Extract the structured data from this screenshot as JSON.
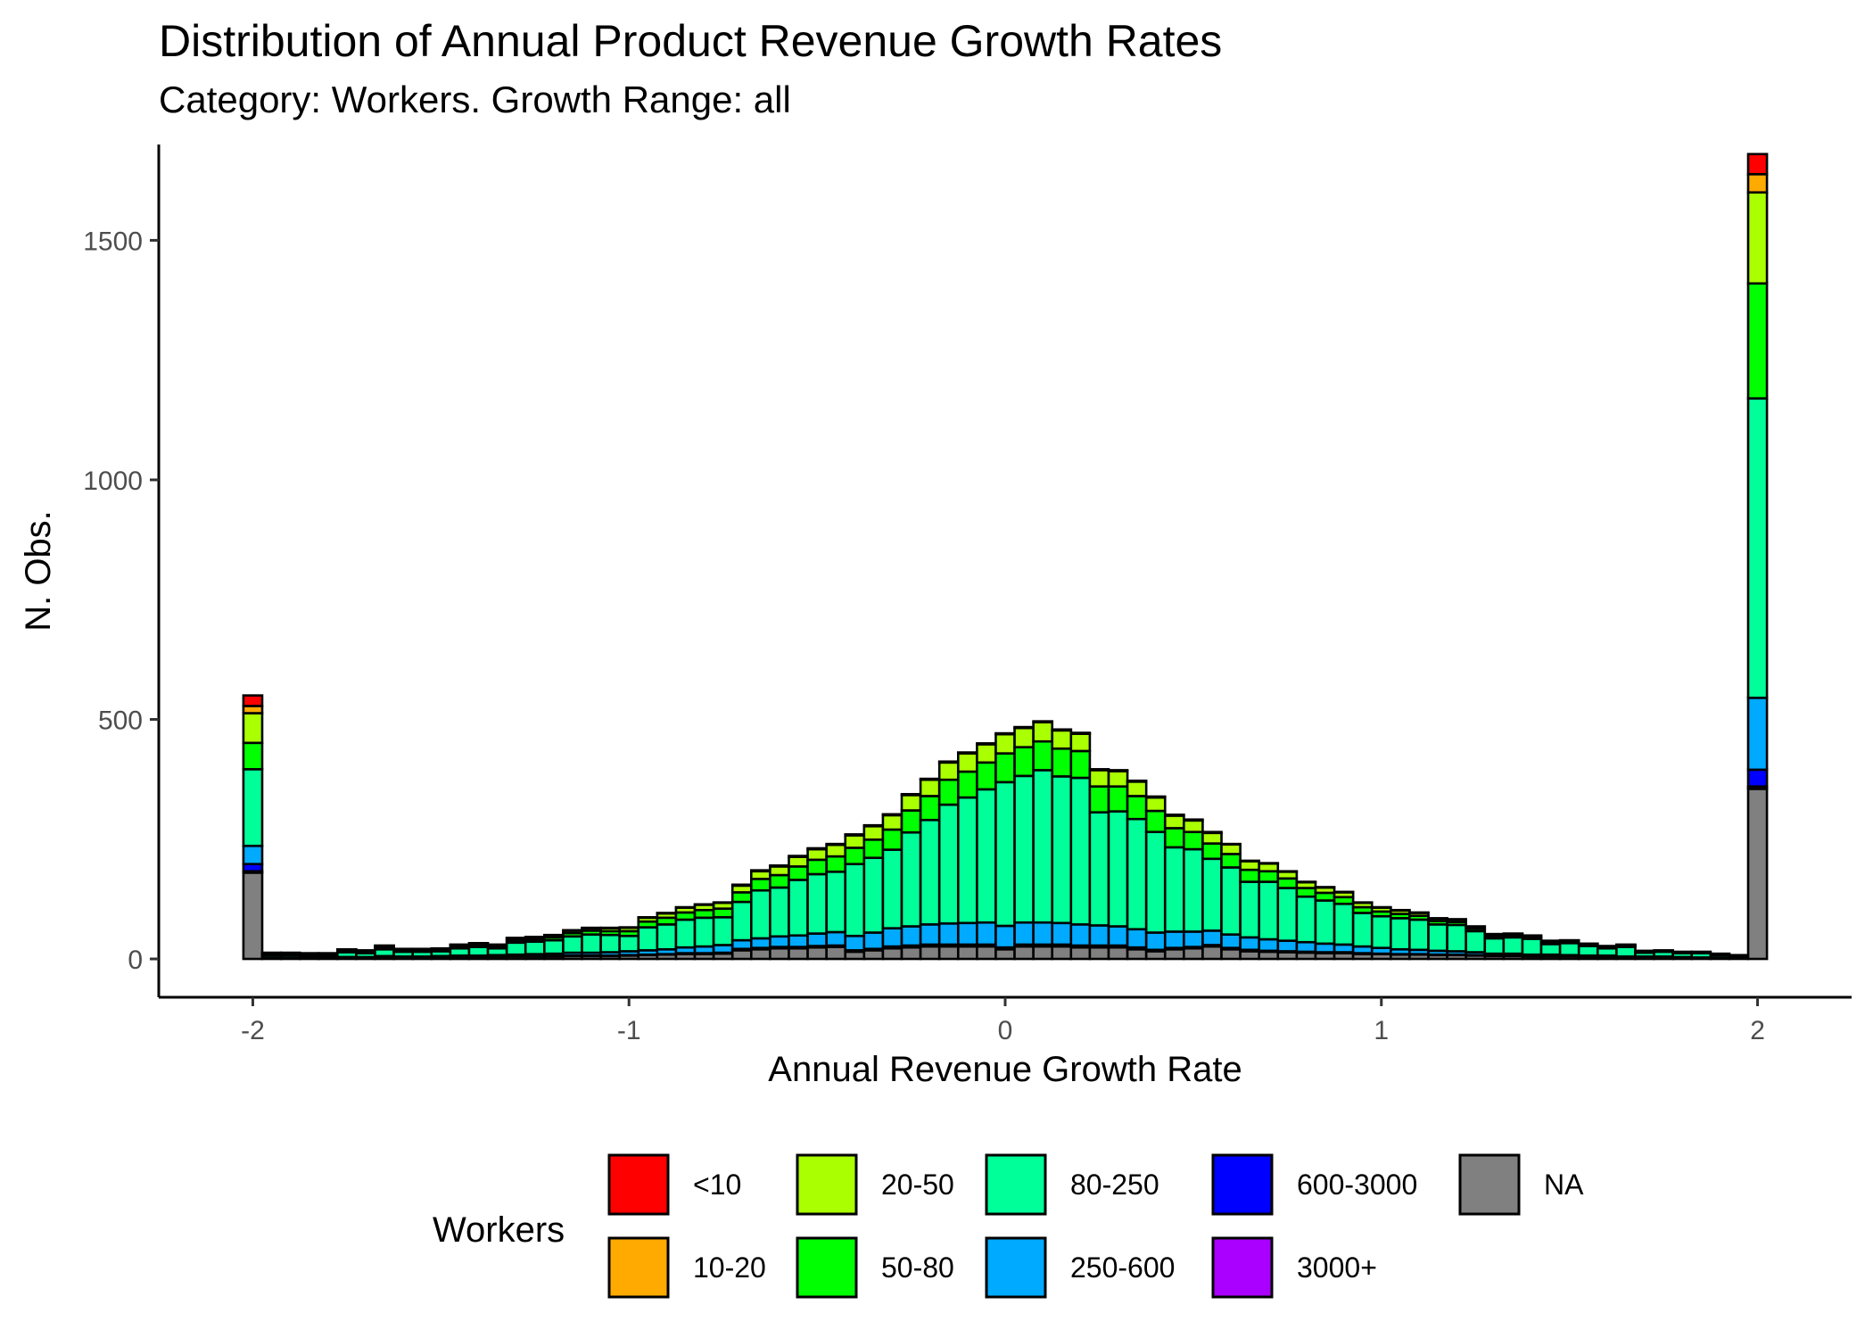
{
  "chart_data": {
    "type": "bar",
    "stacked": true,
    "title": "Distribution of Annual Product Revenue Growth Rates",
    "subtitle": "Category: Workers. Growth Range: all",
    "xlabel": "Annual Revenue Growth Rate",
    "ylabel": "N. Obs.",
    "xlim": [
      -2.25,
      2.25
    ],
    "ylim": [
      -80,
      1700
    ],
    "x_ticks": [
      -2,
      -1,
      0,
      1,
      2
    ],
    "x_tick_labels": [
      "-2",
      "-1",
      "0",
      "1",
      "2"
    ],
    "y_ticks": [
      0,
      500,
      1000,
      1500
    ],
    "y_tick_labels": [
      "0",
      "500",
      "1000",
      "1500"
    ],
    "bin_width": 0.05,
    "grid": false,
    "legend_position": "bottom",
    "legend_title": "Workers",
    "x": [
      -2.0,
      -1.95,
      -1.9,
      -1.85,
      -1.8,
      -1.75,
      -1.7,
      -1.65,
      -1.6,
      -1.55,
      -1.5,
      -1.45,
      -1.4,
      -1.35,
      -1.3,
      -1.25,
      -1.2,
      -1.15,
      -1.1,
      -1.05,
      -1.0,
      -0.95,
      -0.9,
      -0.85,
      -0.8,
      -0.75,
      -0.7,
      -0.65,
      -0.6,
      -0.55,
      -0.5,
      -0.45,
      -0.4,
      -0.35,
      -0.3,
      -0.25,
      -0.2,
      -0.15,
      -0.1,
      -0.05,
      0.0,
      0.05,
      0.1,
      0.15,
      0.2,
      0.25,
      0.3,
      0.35,
      0.4,
      0.45,
      0.5,
      0.55,
      0.6,
      0.65,
      0.7,
      0.75,
      0.8,
      0.85,
      0.9,
      0.95,
      1.0,
      1.05,
      1.1,
      1.15,
      1.2,
      1.25,
      1.3,
      1.35,
      1.4,
      1.45,
      1.5,
      1.55,
      1.6,
      1.65,
      1.7,
      1.75,
      1.8,
      1.85,
      1.9,
      1.95,
      2.0
    ],
    "series": [
      {
        "name": "NA",
        "color": "#808080",
        "values": [
          180,
          2,
          2,
          2,
          2,
          3,
          3,
          4,
          3,
          3,
          3,
          4,
          4,
          4,
          5,
          5,
          5,
          6,
          6,
          6,
          7,
          8,
          9,
          10,
          10,
          11,
          18,
          20,
          22,
          22,
          24,
          25,
          15,
          18,
          22,
          24,
          26,
          26,
          26,
          26,
          20,
          26,
          26,
          26,
          24,
          24,
          24,
          20,
          16,
          20,
          22,
          26,
          20,
          16,
          15,
          14,
          13,
          12,
          12,
          10,
          10,
          9,
          9,
          8,
          8,
          7,
          6,
          6,
          5,
          5,
          5,
          4,
          4,
          3,
          3,
          3,
          2,
          2,
          2,
          2,
          355
        ]
      },
      {
        "name": "3000+",
        "color": "#aa00ff",
        "values": [
          3,
          0,
          0,
          0,
          0,
          0,
          0,
          0,
          0,
          0,
          0,
          0,
          0,
          0,
          0,
          0,
          0,
          0,
          0,
          0,
          0,
          0,
          0,
          0,
          0,
          0,
          0,
          0,
          0,
          0,
          0,
          0,
          0,
          0,
          0,
          0,
          0,
          0,
          0,
          0,
          0,
          0,
          0,
          0,
          0,
          0,
          0,
          0,
          0,
          0,
          0,
          0,
          0,
          0,
          0,
          0,
          0,
          0,
          0,
          0,
          0,
          0,
          0,
          0,
          0,
          0,
          0,
          0,
          0,
          0,
          0,
          0,
          0,
          0,
          0,
          0,
          0,
          0,
          0,
          0,
          5
        ]
      },
      {
        "name": "600-3000",
        "color": "#0000ff",
        "values": [
          15,
          0,
          0,
          0,
          0,
          0,
          0,
          0,
          0,
          0,
          0,
          0,
          0,
          0,
          0,
          0,
          1,
          1,
          1,
          1,
          1,
          1,
          1,
          2,
          2,
          2,
          3,
          3,
          3,
          3,
          3,
          3,
          3,
          3,
          4,
          4,
          4,
          4,
          4,
          4,
          4,
          4,
          4,
          4,
          4,
          4,
          4,
          4,
          3,
          3,
          3,
          3,
          3,
          3,
          2,
          2,
          2,
          2,
          2,
          2,
          1,
          1,
          1,
          1,
          1,
          1,
          0,
          0,
          0,
          0,
          0,
          0,
          0,
          0,
          0,
          0,
          0,
          0,
          0,
          0,
          35
        ]
      },
      {
        "name": "250-600",
        "color": "#00aaff",
        "values": [
          38,
          1,
          1,
          1,
          1,
          1,
          1,
          2,
          2,
          2,
          3,
          3,
          3,
          4,
          4,
          5,
          5,
          6,
          6,
          7,
          8,
          9,
          10,
          12,
          14,
          16,
          18,
          20,
          22,
          24,
          26,
          28,
          30,
          34,
          38,
          40,
          42,
          44,
          45,
          46,
          45,
          46,
          46,
          45,
          44,
          42,
          40,
          38,
          36,
          34,
          32,
          30,
          28,
          26,
          24,
          22,
          20,
          18,
          16,
          14,
          12,
          10,
          9,
          8,
          7,
          6,
          5,
          5,
          4,
          4,
          3,
          3,
          3,
          2,
          2,
          2,
          2,
          1,
          1,
          1,
          150
        ]
      },
      {
        "name": "80-250",
        "color": "#00ff99",
        "values": [
          160,
          5,
          5,
          4,
          4,
          10,
          8,
          14,
          10,
          10,
          10,
          15,
          18,
          14,
          25,
          26,
          28,
          34,
          38,
          36,
          32,
          48,
          52,
          58,
          60,
          58,
          80,
          100,
          102,
          116,
          124,
          126,
          150,
          156,
          164,
          196,
          218,
          248,
          262,
          278,
          300,
          306,
          318,
          306,
          306,
          236,
          240,
          230,
          210,
          176,
          172,
          150,
          140,
          116,
          120,
          110,
          95,
          90,
          85,
          70,
          66,
          65,
          63,
          55,
          55,
          44,
          32,
          34,
          33,
          22,
          25,
          20,
          15,
          20,
          8,
          10,
          8,
          9,
          5,
          2,
          625
        ]
      },
      {
        "name": "50-80",
        "color": "#00ff00",
        "values": [
          55,
          2,
          2,
          2,
          2,
          3,
          3,
          4,
          3,
          3,
          3,
          4,
          4,
          4,
          5,
          5,
          6,
          7,
          8,
          8,
          10,
          12,
          14,
          15,
          16,
          18,
          20,
          24,
          26,
          28,
          30,
          32,
          34,
          38,
          42,
          46,
          50,
          52,
          54,
          56,
          60,
          60,
          60,
          58,
          56,
          54,
          52,
          48,
          44,
          40,
          36,
          32,
          28,
          25,
          22,
          20,
          18,
          16,
          14,
          12,
          10,
          9,
          8,
          7,
          6,
          5,
          4,
          4,
          3,
          3,
          3,
          2,
          2,
          2,
          2,
          1,
          1,
          1,
          1,
          1,
          240
        ]
      },
      {
        "name": "20-50",
        "color": "#aaff00",
        "values": [
          62,
          2,
          2,
          2,
          2,
          2,
          2,
          3,
          2,
          2,
          2,
          3,
          3,
          3,
          4,
          4,
          4,
          5,
          5,
          6,
          7,
          8,
          9,
          10,
          11,
          12,
          14,
          16,
          18,
          20,
          22,
          24,
          26,
          28,
          30,
          32,
          34,
          36,
          38,
          38,
          40,
          40,
          40,
          38,
          36,
          34,
          32,
          30,
          28,
          26,
          24,
          22,
          20,
          18,
          16,
          14,
          12,
          11,
          10,
          9,
          8,
          7,
          6,
          5,
          5,
          4,
          4,
          3,
          3,
          3,
          2,
          2,
          2,
          2,
          1,
          1,
          1,
          1,
          1,
          1,
          190
        ]
      },
      {
        "name": "10-20",
        "color": "#ffaa00",
        "values": [
          15,
          1,
          1,
          1,
          1,
          1,
          1,
          1,
          1,
          1,
          1,
          1,
          1,
          1,
          1,
          1,
          1,
          1,
          1,
          1,
          1,
          1,
          1,
          1,
          1,
          1,
          2,
          2,
          2,
          2,
          2,
          2,
          2,
          2,
          2,
          2,
          2,
          2,
          2,
          2,
          2,
          2,
          2,
          2,
          2,
          2,
          2,
          2,
          2,
          2,
          2,
          2,
          1,
          1,
          1,
          1,
          1,
          1,
          1,
          1,
          1,
          1,
          1,
          1,
          1,
          1,
          1,
          1,
          1,
          1,
          1,
          1,
          1,
          1,
          1,
          1,
          1,
          1,
          1,
          1,
          38
        ]
      },
      {
        "name": "<10",
        "color": "#ff0000",
        "values": [
          22,
          0,
          0,
          0,
          0,
          0,
          0,
          0,
          0,
          0,
          0,
          0,
          0,
          0,
          0,
          0,
          0,
          0,
          0,
          0,
          0,
          0,
          0,
          0,
          0,
          0,
          0,
          0,
          0,
          0,
          0,
          0,
          0,
          0,
          0,
          0,
          0,
          0,
          0,
          0,
          0,
          0,
          0,
          0,
          0,
          0,
          0,
          0,
          0,
          0,
          0,
          0,
          0,
          0,
          0,
          0,
          0,
          0,
          0,
          0,
          0,
          0,
          0,
          0,
          0,
          0,
          0,
          0,
          0,
          0,
          0,
          0,
          0,
          0,
          0,
          0,
          0,
          0,
          0,
          0,
          42
        ]
      }
    ],
    "legend_order": [
      "<10",
      "10-20",
      "20-50",
      "50-80",
      "80-250",
      "250-600",
      "600-3000",
      "3000+",
      "NA"
    ]
  }
}
